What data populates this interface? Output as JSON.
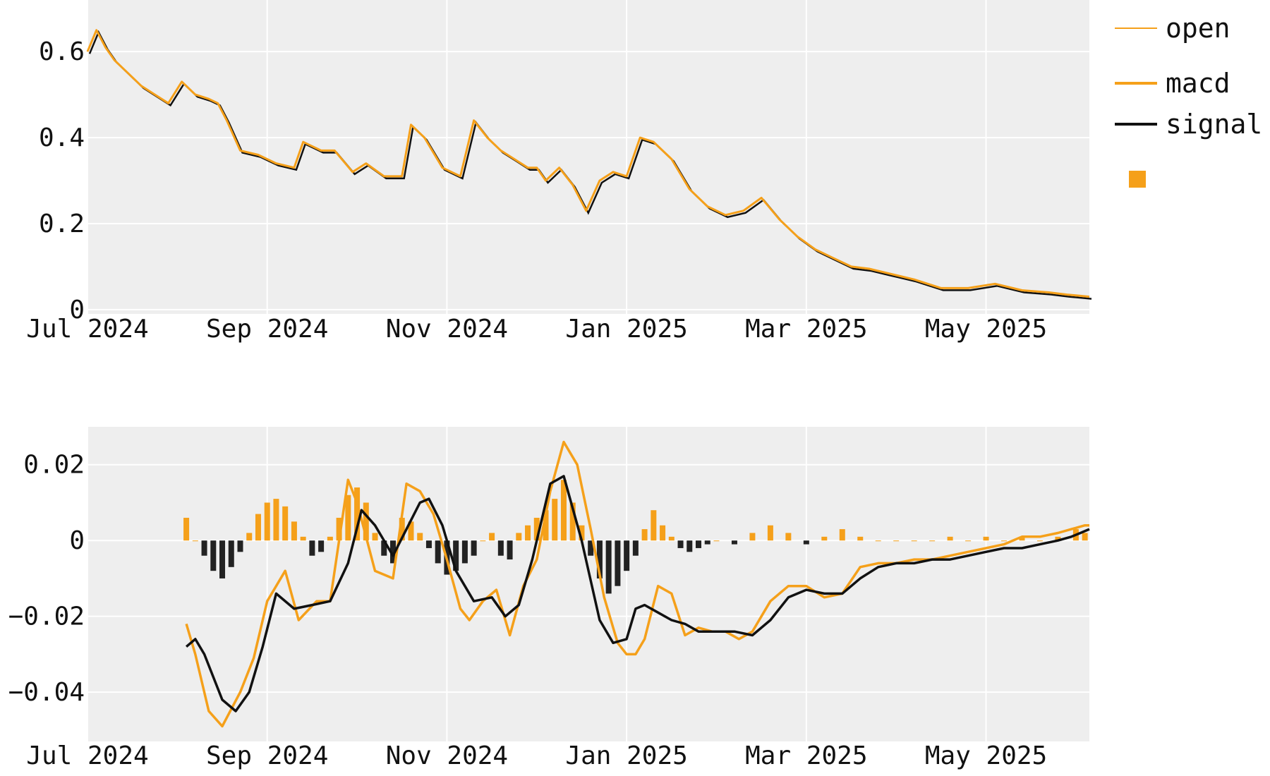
{
  "colors": {
    "orange": "#f5a01a",
    "black": "#111111",
    "panel_bg": "#eeeeee",
    "grid": "#ffffff",
    "hist_pos": "#f5a01a",
    "hist_neg": "#222222"
  },
  "legend": {
    "items": [
      {
        "label": "open",
        "style": "thin-line",
        "color": "#f5a01a"
      },
      {
        "label": "macd",
        "style": "line",
        "color": "#f5a01a"
      },
      {
        "label": "signal",
        "style": "line",
        "color": "#111111"
      },
      {
        "label": "",
        "style": "square",
        "color": "#f5a01a"
      }
    ],
    "placement": "top-right, outside plot"
  },
  "chart_data": [
    {
      "type": "line",
      "title": "",
      "xlabel": "",
      "ylabel": "",
      "x_ticks": [
        "Jul 2024",
        "Sep 2024",
        "Nov 2024",
        "Jan 2025",
        "Mar 2025",
        "May 2025"
      ],
      "x_tick_months": [
        0,
        2,
        4,
        6,
        8,
        10
      ],
      "x_range_months": [
        0.0,
        11.15
      ],
      "y_ticks": [
        "0",
        "0.2",
        "0.4",
        "0.6"
      ],
      "y_tick_values": [
        0,
        0.2,
        0.4,
        0.6
      ],
      "ylim": [
        -0.01,
        0.72
      ],
      "grid": true,
      "series": [
        {
          "name": "open",
          "color": "#f5a01a",
          "x": [
            0.0,
            0.1,
            0.2,
            0.3,
            0.45,
            0.6,
            0.75,
            0.9,
            1.05,
            1.2,
            1.35,
            1.45,
            1.55,
            1.7,
            1.9,
            2.1,
            2.3,
            2.4,
            2.5,
            2.6,
            2.75,
            2.95,
            3.1,
            3.3,
            3.5,
            3.6,
            3.75,
            3.95,
            4.15,
            4.3,
            4.45,
            4.6,
            4.75,
            4.9,
            5.0,
            5.1,
            5.25,
            5.4,
            5.55,
            5.7,
            5.85,
            6.0,
            6.15,
            6.3,
            6.5,
            6.7,
            6.9,
            7.1,
            7.3,
            7.5,
            7.7,
            7.9,
            8.1,
            8.3,
            8.5,
            8.7,
            8.9,
            9.2,
            9.5,
            9.8,
            10.1,
            10.4,
            10.7,
            10.9,
            11.0,
            11.15
          ],
          "values": [
            0.6,
            0.65,
            0.61,
            0.58,
            0.55,
            0.52,
            0.5,
            0.48,
            0.53,
            0.5,
            0.49,
            0.48,
            0.44,
            0.37,
            0.36,
            0.34,
            0.33,
            0.39,
            0.38,
            0.37,
            0.37,
            0.32,
            0.34,
            0.31,
            0.31,
            0.43,
            0.4,
            0.33,
            0.31,
            0.44,
            0.4,
            0.37,
            0.35,
            0.33,
            0.33,
            0.3,
            0.33,
            0.29,
            0.23,
            0.3,
            0.32,
            0.31,
            0.4,
            0.39,
            0.35,
            0.28,
            0.24,
            0.22,
            0.23,
            0.26,
            0.21,
            0.17,
            0.14,
            0.12,
            0.1,
            0.095,
            0.085,
            0.07,
            0.05,
            0.05,
            0.06,
            0.045,
            0.04,
            0.035,
            0.033,
            0.03
          ]
        }
      ]
    },
    {
      "type": "line",
      "title": "",
      "xlabel": "",
      "ylabel": "",
      "x_ticks": [
        "Jul 2024",
        "Sep 2024",
        "Nov 2024",
        "Jan 2025",
        "Mar 2025",
        "May 2025"
      ],
      "x_tick_months": [
        0,
        2,
        4,
        6,
        8,
        10
      ],
      "x_range_months": [
        0.0,
        11.15
      ],
      "y_ticks": [
        "−0.04",
        "−0.02",
        "0",
        "0.02"
      ],
      "y_tick_values": [
        -0.04,
        -0.02,
        0,
        0.02
      ],
      "ylim": [
        -0.053,
        0.03
      ],
      "grid": true,
      "series": [
        {
          "name": "macd",
          "color": "#f5a01a",
          "x": [
            1.1,
            1.2,
            1.35,
            1.5,
            1.7,
            1.85,
            2.0,
            2.2,
            2.35,
            2.55,
            2.7,
            2.8,
            2.9,
            3.0,
            3.2,
            3.4,
            3.55,
            3.7,
            3.85,
            4.0,
            4.15,
            4.25,
            4.4,
            4.55,
            4.7,
            4.85,
            5.0,
            5.15,
            5.3,
            5.45,
            5.6,
            5.75,
            5.9,
            6.0,
            6.1,
            6.2,
            6.35,
            6.5,
            6.65,
            6.8,
            6.95,
            7.1,
            7.25,
            7.4,
            7.6,
            7.8,
            8.0,
            8.2,
            8.4,
            8.6,
            8.8,
            9.0,
            9.2,
            9.4,
            9.6,
            9.8,
            10.0,
            10.2,
            10.4,
            10.6,
            10.8,
            10.95,
            11.1,
            11.15
          ],
          "values": [
            -0.022,
            -0.03,
            -0.045,
            -0.049,
            -0.04,
            -0.031,
            -0.016,
            -0.008,
            -0.021,
            -0.016,
            -0.016,
            0.0,
            0.016,
            0.01,
            -0.008,
            -0.01,
            0.015,
            0.013,
            0.007,
            -0.005,
            -0.018,
            -0.021,
            -0.016,
            -0.013,
            -0.025,
            -0.012,
            -0.005,
            0.013,
            0.026,
            0.02,
            0.003,
            -0.015,
            -0.027,
            -0.03,
            -0.03,
            -0.026,
            -0.012,
            -0.014,
            -0.025,
            -0.023,
            -0.024,
            -0.024,
            -0.026,
            -0.024,
            -0.016,
            -0.012,
            -0.012,
            -0.015,
            -0.014,
            -0.007,
            -0.006,
            -0.006,
            -0.005,
            -0.005,
            -0.004,
            -0.003,
            -0.002,
            -0.001,
            0.001,
            0.001,
            0.002,
            0.003,
            0.004,
            0.004
          ]
        },
        {
          "name": "signal",
          "color": "#111111",
          "x": [
            1.1,
            1.2,
            1.3,
            1.5,
            1.65,
            1.8,
            1.95,
            2.1,
            2.3,
            2.5,
            2.7,
            2.9,
            3.05,
            3.2,
            3.4,
            3.55,
            3.7,
            3.8,
            3.95,
            4.1,
            4.3,
            4.5,
            4.65,
            4.8,
            4.95,
            5.15,
            5.3,
            5.5,
            5.7,
            5.85,
            6.0,
            6.1,
            6.2,
            6.35,
            6.5,
            6.65,
            6.8,
            7.0,
            7.2,
            7.4,
            7.6,
            7.8,
            8.0,
            8.2,
            8.4,
            8.6,
            8.8,
            9.0,
            9.2,
            9.4,
            9.6,
            9.8,
            10.0,
            10.2,
            10.4,
            10.6,
            10.8,
            10.95,
            11.05,
            11.15
          ],
          "values": [
            -0.028,
            -0.026,
            -0.03,
            -0.042,
            -0.045,
            -0.04,
            -0.028,
            -0.014,
            -0.018,
            -0.017,
            -0.016,
            -0.006,
            0.008,
            0.004,
            -0.004,
            0.003,
            0.01,
            0.011,
            0.004,
            -0.008,
            -0.016,
            -0.015,
            -0.02,
            -0.017,
            -0.005,
            0.015,
            0.017,
            0.0,
            -0.021,
            -0.027,
            -0.026,
            -0.018,
            -0.017,
            -0.019,
            -0.021,
            -0.022,
            -0.024,
            -0.024,
            -0.024,
            -0.025,
            -0.021,
            -0.015,
            -0.013,
            -0.014,
            -0.014,
            -0.01,
            -0.007,
            -0.006,
            -0.006,
            -0.005,
            -0.005,
            -0.004,
            -0.003,
            -0.002,
            -0.002,
            -0.001,
            0.0,
            0.001,
            0.002,
            0.003
          ]
        },
        {
          "name": "histogram",
          "color_positive": "#f5a01a",
          "color_negative": "#222222",
          "x": [
            1.1,
            1.2,
            1.3,
            1.4,
            1.5,
            1.6,
            1.7,
            1.8,
            1.9,
            2.0,
            2.1,
            2.2,
            2.3,
            2.4,
            2.5,
            2.6,
            2.7,
            2.8,
            2.9,
            3.0,
            3.1,
            3.2,
            3.3,
            3.4,
            3.5,
            3.6,
            3.7,
            3.8,
            3.9,
            4.0,
            4.1,
            4.2,
            4.3,
            4.4,
            4.5,
            4.6,
            4.7,
            4.8,
            4.9,
            5.0,
            5.1,
            5.2,
            5.3,
            5.4,
            5.5,
            5.6,
            5.7,
            5.8,
            5.9,
            6.0,
            6.1,
            6.2,
            6.3,
            6.4,
            6.5,
            6.6,
            6.7,
            6.8,
            6.9,
            7.0,
            7.2,
            7.4,
            7.6,
            7.8,
            8.0,
            8.2,
            8.4,
            8.6,
            8.8,
            9.0,
            9.2,
            9.4,
            9.6,
            9.8,
            10.0,
            10.2,
            10.4,
            10.6,
            10.8,
            11.0,
            11.1
          ],
          "values": [
            0.006,
            0.0,
            -0.004,
            -0.008,
            -0.01,
            -0.007,
            -0.003,
            0.002,
            0.007,
            0.01,
            0.011,
            0.009,
            0.005,
            0.001,
            -0.004,
            -0.003,
            0.001,
            0.006,
            0.012,
            0.014,
            0.01,
            0.002,
            -0.004,
            -0.006,
            0.006,
            0.005,
            0.002,
            -0.002,
            -0.006,
            -0.009,
            -0.008,
            -0.006,
            -0.004,
            0.0,
            0.002,
            -0.004,
            -0.005,
            0.002,
            0.004,
            0.006,
            0.008,
            0.011,
            0.016,
            0.01,
            0.004,
            -0.004,
            -0.01,
            -0.014,
            -0.012,
            -0.008,
            -0.004,
            0.003,
            0.008,
            0.004,
            0.001,
            -0.002,
            -0.003,
            -0.002,
            -0.001,
            0.0,
            -0.001,
            0.002,
            0.004,
            0.002,
            -0.001,
            0.001,
            0.003,
            0.001,
            0.0,
            0.0,
            0.0,
            0.0,
            0.001,
            0.0,
            0.001,
            0.0,
            0.001,
            0.0,
            0.001,
            0.003,
            0.002
          ]
        }
      ]
    }
  ]
}
